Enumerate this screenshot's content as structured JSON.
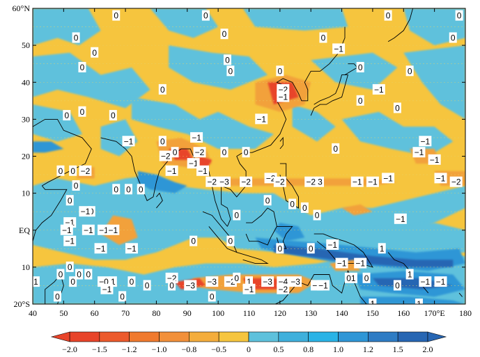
{
  "map": {
    "lon_range": [
      40,
      180
    ],
    "lat_range": [
      -20,
      60
    ],
    "lon_ticks": [
      "40",
      "50",
      "60",
      "70",
      "80",
      "90",
      "100",
      "110",
      "120",
      "130",
      "140",
      "150",
      "160",
      "170°E",
      "180"
    ],
    "lat_ticks": [
      "60°N",
      "50",
      "40",
      "30",
      "20",
      "10",
      "EQ",
      "10",
      "20°S"
    ],
    "colors": {
      "neg_strong": "#e8442a",
      "neg_mid": "#f07a2e",
      "neg_weak": "#f2a13a",
      "neg_light": "#f6c53e",
      "pos_light": "#5ec1dc",
      "pos_mid": "#2f96d6",
      "pos_strong": "#2766b3",
      "coast": "#000000",
      "contour": "#000000"
    },
    "contour_labels": [
      {
        "text": "0",
        "lon": 67,
        "lat": 58
      },
      {
        "text": "0",
        "lon": 96,
        "lat": 58
      },
      {
        "text": "0",
        "lon": 155,
        "lat": 58
      },
      {
        "text": "0",
        "lon": 178,
        "lat": 58
      },
      {
        "text": "0",
        "lon": 54,
        "lat": 52
      },
      {
        "text": "0",
        "lon": 102,
        "lat": 53
      },
      {
        "text": "0",
        "lon": 134,
        "lat": 52
      },
      {
        "text": "0",
        "lon": 176,
        "lat": 52
      },
      {
        "text": "-1",
        "lon": 139,
        "lat": 49
      },
      {
        "text": "0",
        "lon": 60,
        "lat": 48
      },
      {
        "text": "0",
        "lon": 56,
        "lat": 44
      },
      {
        "text": "0",
        "lon": 103,
        "lat": 46
      },
      {
        "text": "0",
        "lon": 104,
        "lat": 43
      },
      {
        "text": "0",
        "lon": 120,
        "lat": 43
      },
      {
        "text": "0",
        "lon": 146,
        "lat": 44
      },
      {
        "text": "0",
        "lon": 162,
        "lat": 43
      },
      {
        "text": "0",
        "lon": 82,
        "lat": 38
      },
      {
        "text": "-2",
        "lon": 121,
        "lat": 38
      },
      {
        "text": "-1",
        "lon": 121,
        "lat": 36
      },
      {
        "text": "-1",
        "lon": 152,
        "lat": 38
      },
      {
        "text": "0",
        "lon": 146,
        "lat": 35
      },
      {
        "text": "0",
        "lon": 158,
        "lat": 33
      },
      {
        "text": "0",
        "lon": 51,
        "lat": 31
      },
      {
        "text": "0",
        "lon": 56,
        "lat": 32
      },
      {
        "text": "0",
        "lon": 66,
        "lat": 31
      },
      {
        "text": "-1",
        "lon": 114,
        "lat": 30
      },
      {
        "text": "0",
        "lon": 86,
        "lat": 21
      },
      {
        "text": "-1",
        "lon": 71,
        "lat": 24
      },
      {
        "text": "0",
        "lon": 82,
        "lat": 24
      },
      {
        "text": "-1",
        "lon": 93,
        "lat": 25
      },
      {
        "text": "-2",
        "lon": 94,
        "lat": 21
      },
      {
        "text": "-2",
        "lon": 83,
        "lat": 20
      },
      {
        "text": "-1",
        "lon": 92,
        "lat": 18
      },
      {
        "text": "0",
        "lon": 102,
        "lat": 21
      },
      {
        "text": "0",
        "lon": 109,
        "lat": 21
      },
      {
        "text": "0",
        "lon": 138,
        "lat": 22
      },
      {
        "text": "-1",
        "lon": 167,
        "lat": 24
      },
      {
        "text": "-1",
        "lon": 165,
        "lat": 21
      },
      {
        "text": "-1",
        "lon": 170,
        "lat": 19
      },
      {
        "text": "0",
        "lon": 49,
        "lat": 16
      },
      {
        "text": "0",
        "lon": 53,
        "lat": 16
      },
      {
        "text": "-2",
        "lon": 57,
        "lat": 16
      },
      {
        "text": "-1",
        "lon": 85,
        "lat": 16
      },
      {
        "text": "-1",
        "lon": 95,
        "lat": 16
      },
      {
        "text": "0",
        "lon": 67,
        "lat": 11
      },
      {
        "text": "0",
        "lon": 71,
        "lat": 11
      },
      {
        "text": "0",
        "lon": 75,
        "lat": 11
      },
      {
        "text": "-2",
        "lon": 98,
        "lat": 13
      },
      {
        "text": "-3",
        "lon": 102,
        "lat": 13
      },
      {
        "text": "-2",
        "lon": 109,
        "lat": 13
      },
      {
        "text": "-2",
        "lon": 117,
        "lat": 14
      },
      {
        "text": "-2",
        "lon": 120,
        "lat": 13
      },
      {
        "text": "-2",
        "lon": 130,
        "lat": 13
      },
      {
        "text": "3",
        "lon": 133,
        "lat": 13
      },
      {
        "text": "-1",
        "lon": 145,
        "lat": 13
      },
      {
        "text": "-1",
        "lon": 150,
        "lat": 13
      },
      {
        "text": "-1",
        "lon": 155,
        "lat": 14
      },
      {
        "text": "-1",
        "lon": 172,
        "lat": 14
      },
      {
        "text": "-2",
        "lon": 177,
        "lat": 13
      },
      {
        "text": "0",
        "lon": 54,
        "lat": 12
      },
      {
        "text": "0",
        "lon": 52,
        "lat": 8
      },
      {
        "text": "0",
        "lon": 59,
        "lat": 5
      },
      {
        "text": "-1",
        "lon": 57,
        "lat": 5
      },
      {
        "text": "-1",
        "lon": 52,
        "lat": 2
      },
      {
        "text": "0",
        "lon": 116,
        "lat": 8
      },
      {
        "text": "0",
        "lon": 124,
        "lat": 7
      },
      {
        "text": "0",
        "lon": 128,
        "lat": 6
      },
      {
        "text": "0",
        "lon": 132,
        "lat": 4
      },
      {
        "text": "0",
        "lon": 106,
        "lat": 4
      },
      {
        "text": "-1",
        "lon": 159,
        "lat": 3
      },
      {
        "text": "-1",
        "lon": 51,
        "lat": 0
      },
      {
        "text": "-1",
        "lon": 58,
        "lat": 0
      },
      {
        "text": "-1",
        "lon": 63,
        "lat": 0
      },
      {
        "text": "-1",
        "lon": 66,
        "lat": 0
      },
      {
        "text": "-1",
        "lon": 52,
        "lat": -3
      },
      {
        "text": "-1",
        "lon": 62,
        "lat": -5
      },
      {
        "text": "-1",
        "lon": 72,
        "lat": -5
      },
      {
        "text": "0",
        "lon": 92,
        "lat": -3
      },
      {
        "text": "0",
        "lon": 104,
        "lat": -3
      },
      {
        "text": "0",
        "lon": 120,
        "lat": -5
      },
      {
        "text": "0",
        "lon": 130,
        "lat": -5
      },
      {
        "text": "-1",
        "lon": 137,
        "lat": -4
      },
      {
        "text": "1",
        "lon": 153,
        "lat": -5
      },
      {
        "text": "-1",
        "lon": 140,
        "lat": -9
      },
      {
        "text": "-1",
        "lon": 146,
        "lat": -9
      },
      {
        "text": "0",
        "lon": 52,
        "lat": -10
      },
      {
        "text": "0",
        "lon": 49,
        "lat": -12
      },
      {
        "text": "0",
        "lon": 55,
        "lat": -12
      },
      {
        "text": "0",
        "lon": 58,
        "lat": -12
      },
      {
        "text": "1",
        "lon": 41,
        "lat": -14
      },
      {
        "text": "0",
        "lon": 53,
        "lat": -14
      },
      {
        "text": "-0",
        "lon": 63,
        "lat": -14
      },
      {
        "text": "1",
        "lon": 66,
        "lat": -14
      },
      {
        "text": "0",
        "lon": 72,
        "lat": -14
      },
      {
        "text": "0",
        "lon": 77,
        "lat": -15
      },
      {
        "text": "-2",
        "lon": 85,
        "lat": -13
      },
      {
        "text": "0",
        "lon": 85,
        "lat": -15
      },
      {
        "text": "-3",
        "lon": 91,
        "lat": -15
      },
      {
        "text": "-3",
        "lon": 98,
        "lat": -14
      },
      {
        "text": "-2",
        "lon": 104,
        "lat": -14
      },
      {
        "text": "0",
        "lon": 106,
        "lat": -13
      },
      {
        "text": "1",
        "lon": 110,
        "lat": -14
      },
      {
        "text": "-3",
        "lon": 116,
        "lat": -14
      },
      {
        "text": "-4",
        "lon": 121,
        "lat": -14
      },
      {
        "text": "-3",
        "lon": 125,
        "lat": -14
      },
      {
        "text": "-2",
        "lon": 121,
        "lat": -16
      },
      {
        "text": "-1",
        "lon": 132,
        "lat": -15
      },
      {
        "text": "-1",
        "lon": 134,
        "lat": -15
      },
      {
        "text": "-1",
        "lon": 110,
        "lat": -16
      },
      {
        "text": "0",
        "lon": 148,
        "lat": -13
      },
      {
        "text": "01",
        "lon": 143,
        "lat": -13
      },
      {
        "text": "1",
        "lon": 162,
        "lat": -12
      },
      {
        "text": "0",
        "lon": 158,
        "lat": -15
      },
      {
        "text": "-1",
        "lon": 167,
        "lat": -14
      },
      {
        "text": "-1",
        "lon": 172,
        "lat": -14
      },
      {
        "text": "0",
        "lon": 48,
        "lat": -18
      },
      {
        "text": "0",
        "lon": 69,
        "lat": -18
      },
      {
        "text": "0",
        "lon": 98,
        "lat": -18
      },
      {
        "text": "-1",
        "lon": 64,
        "lat": -16
      },
      {
        "text": "1",
        "lon": 150,
        "lat": -20
      },
      {
        "text": "1",
        "lon": 165,
        "lat": -20
      }
    ]
  },
  "colorbar": {
    "tick_labels": [
      "−2.0",
      "−1.5",
      "−1.2",
      "−1.0",
      "−0.8",
      "−0.5",
      "0",
      "0.5",
      "0.8",
      "1.0",
      "1.2",
      "1.5",
      "2.0"
    ],
    "colors": [
      "#e8442a",
      "#ec5a2c",
      "#f07a2e",
      "#f2903a",
      "#f4ad3c",
      "#f6c53e",
      "#5ec1dc",
      "#3fb0dc",
      "#2ab3e6",
      "#2f96d6",
      "#2e7cc4",
      "#2766b3"
    ]
  }
}
